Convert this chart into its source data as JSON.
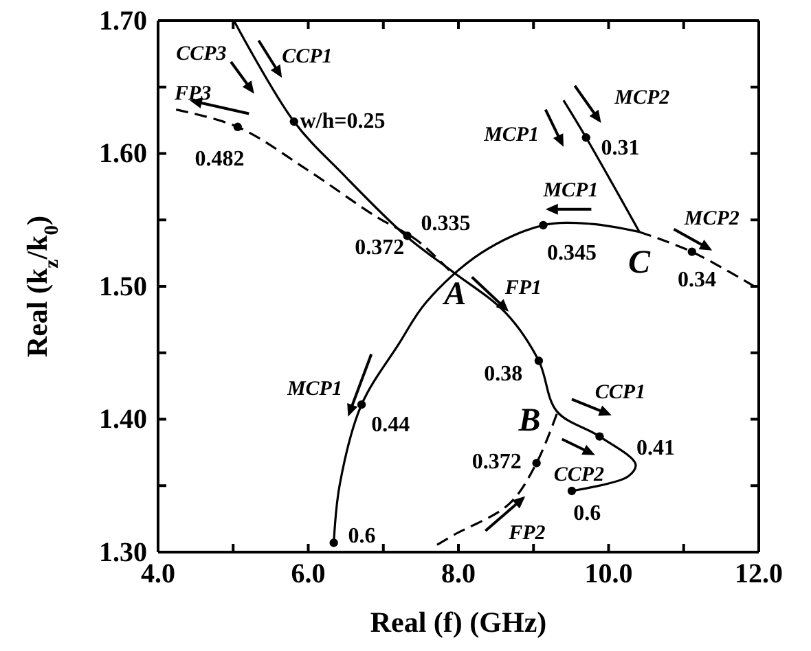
{
  "chart_data": {
    "type": "line",
    "xlabel": "Real (f) (GHz)",
    "ylabel": "Real (k$_{z}$/k$_{0}$)",
    "xlim": [
      4,
      12
    ],
    "ylim": [
      1.3,
      1.7
    ],
    "xticks": [
      {
        "value": 4,
        "label": "4.0"
      },
      {
        "value": 5,
        "label": null
      },
      {
        "value": 6,
        "label": "6.0"
      },
      {
        "value": 7,
        "label": null
      },
      {
        "value": 8,
        "label": "8.0"
      },
      {
        "value": 9,
        "label": null
      },
      {
        "value": 10,
        "label": "10.0"
      },
      {
        "value": 11,
        "label": null
      },
      {
        "value": 12,
        "label": "12.0"
      }
    ],
    "yticks": [
      {
        "value": 1.3,
        "label": "1.30"
      },
      {
        "value": 1.35,
        "label": null
      },
      {
        "value": 1.4,
        "label": "1.40"
      },
      {
        "value": 1.45,
        "label": null
      },
      {
        "value": 1.5,
        "label": "1.50"
      },
      {
        "value": 1.55,
        "label": null
      },
      {
        "value": 1.6,
        "label": "1.60"
      },
      {
        "value": 1.65,
        "label": null
      },
      {
        "value": 1.7,
        "label": "1.70"
      }
    ],
    "grid": false,
    "series": [
      {
        "color": "#000000",
        "line_style": "solid",
        "marker": "none",
        "x": [
          5.01,
          5.81,
          6.47,
          7.3,
          7.9,
          8.63,
          9.07,
          9.31,
          9.88,
          10.36,
          10.26,
          9.51
        ],
        "values": [
          1.7,
          1.624,
          1.584,
          1.538,
          1.512,
          1.48,
          1.444,
          1.406,
          1.387,
          1.366,
          1.357,
          1.346
        ]
      },
      {
        "color": "#000000",
        "line_style": "solid",
        "marker": "none",
        "x": [
          6.34,
          6.42,
          6.71,
          7.21,
          7.57,
          8.3,
          9.13,
          9.77,
          10.41
        ],
        "values": [
          1.307,
          1.351,
          1.411,
          1.457,
          1.488,
          1.525,
          1.546,
          1.547,
          1.541
        ]
      },
      {
        "color": "#000000",
        "line_style": "solid",
        "marker": "none",
        "x": [
          10.41,
          9.7,
          9.4
        ],
        "values": [
          1.541,
          1.612,
          1.64
        ]
      },
      {
        "color": "#000000",
        "line_style": "dashed",
        "marker": "none",
        "x": [
          10.41,
          11.11,
          11.97
        ],
        "values": [
          1.541,
          1.526,
          1.499
        ]
      },
      {
        "color": "#000000",
        "line_style": "dashed",
        "marker": "none",
        "x": [
          4.24,
          5.06,
          5.98,
          6.89,
          7.44,
          7.88
        ],
        "values": [
          1.633,
          1.62,
          1.588,
          1.553,
          1.535,
          1.512
        ]
      },
      {
        "color": "#000000",
        "line_style": "dashed",
        "marker": "none",
        "x": [
          9.31,
          9.04,
          8.67,
          7.94,
          7.7
        ],
        "values": [
          1.404,
          1.367,
          1.336,
          1.313,
          1.305
        ]
      },
      {
        "type": "scatter",
        "color": "#000000",
        "marker": "circle",
        "x": [
          5.81,
          7.32,
          5.06,
          9.07,
          9.88,
          9.51,
          9.04,
          6.71,
          6.34,
          9.13,
          9.7,
          11.11
        ],
        "values": [
          1.624,
          1.538,
          1.62,
          1.444,
          1.387,
          1.346,
          1.367,
          1.411,
          1.307,
          1.546,
          1.612,
          1.526
        ]
      }
    ],
    "annotations": [
      "CCP3",
      "CCP1",
      "FP3",
      "w/h=0.25",
      "0.482",
      "0.335",
      "0.372",
      "A",
      "FP1",
      "MCP2",
      "MCP1",
      "0.31",
      "MCP1",
      "0.345",
      "C",
      "MCP2",
      "0.34",
      "0.38",
      "B",
      "CCP1",
      "0.41",
      "0.372",
      "CCP2",
      "0.6",
      "FP2",
      "MCP1",
      "0.44",
      "0.6"
    ]
  }
}
